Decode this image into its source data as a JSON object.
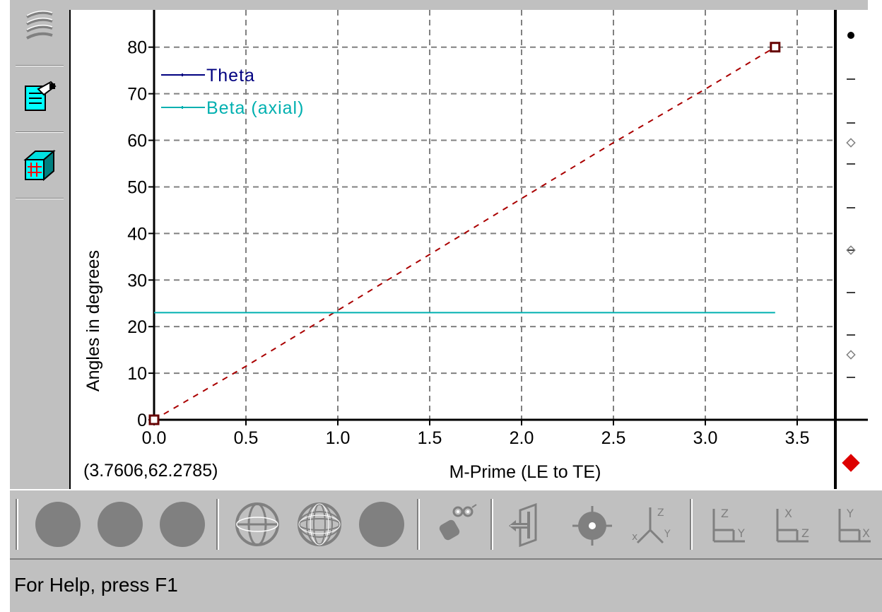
{
  "status": {
    "help_text": "For Help, press F1"
  },
  "readout": {
    "coordinates": "(3.7606,62.2785)"
  },
  "left_toolbar": {
    "items": [
      {
        "icon": "blade-rows-icon"
      },
      {
        "icon": "properties-icon"
      },
      {
        "icon": "grid-plane-icon"
      }
    ]
  },
  "bottom_toolbar": {
    "items": [
      {
        "icon": "filled-circle-icon"
      },
      {
        "icon": "filled-circle-icon"
      },
      {
        "icon": "filled-circle-icon"
      },
      {
        "icon": "wireframe-sphere-icon"
      },
      {
        "icon": "mesh-sphere-icon"
      },
      {
        "icon": "solid-sphere-icon"
      },
      {
        "icon": "camera-icon"
      },
      {
        "icon": "view-back-icon"
      },
      {
        "icon": "target-icon"
      },
      {
        "icon": "axes-xyz-icon"
      },
      {
        "icon": "axes-zy-icon"
      },
      {
        "icon": "axes-xz-icon"
      },
      {
        "icon": "axes-yx-icon"
      }
    ]
  },
  "chart_data": {
    "type": "line",
    "title": "",
    "xlabel": "M-Prime (LE to TE)",
    "ylabel": "Angles in degrees",
    "xlim": [
      0,
      3.7
    ],
    "ylim": [
      0,
      88
    ],
    "x_ticks": [
      "0.0",
      "0.5",
      "1.0",
      "1.5",
      "2.0",
      "2.5",
      "3.0",
      "3.5"
    ],
    "y_ticks": [
      "0",
      "10",
      "20",
      "30",
      "40",
      "50",
      "60",
      "70",
      "80"
    ],
    "grid": true,
    "legend_position": "top-left",
    "series": [
      {
        "name": "Theta",
        "legend_color": "#000080",
        "line_color": "#aa0000",
        "style": "dashed",
        "x": [
          0.0,
          0.5,
          1.0,
          1.5,
          2.0,
          2.5,
          3.0,
          3.38
        ],
        "y": [
          0,
          11.5,
          23.5,
          35.5,
          47.5,
          59.5,
          71.0,
          80.0
        ],
        "endpoint_markers": true
      },
      {
        "name": "Beta (axial)",
        "legend_color": "#00b0b0",
        "line_color": "#00b0b0",
        "style": "solid",
        "x": [
          0.0,
          3.38
        ],
        "y": [
          23,
          23
        ]
      }
    ]
  }
}
